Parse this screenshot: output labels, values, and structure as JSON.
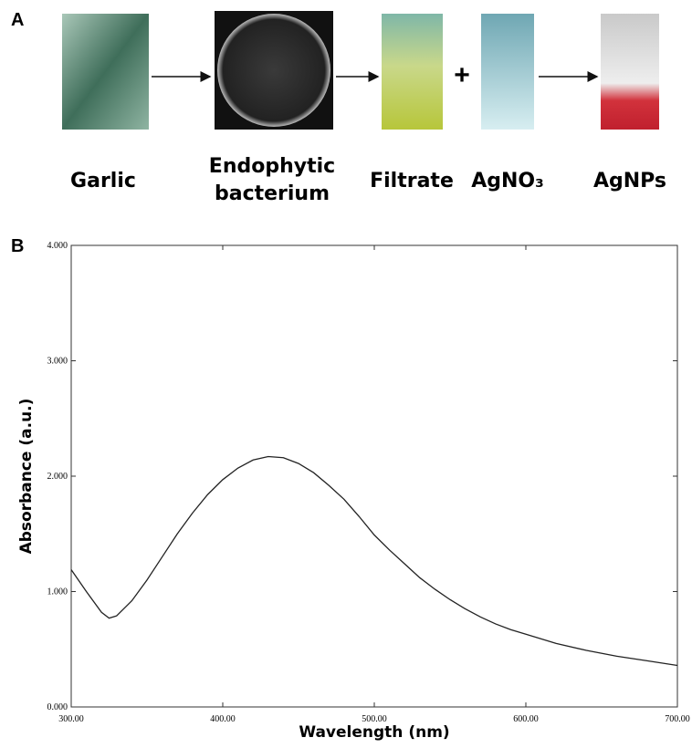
{
  "panel_a": {
    "label": "A",
    "steps": [
      "Garlic",
      "Endophytic bacterium",
      "Filtrate",
      "AgNO₃",
      "AgNPs"
    ],
    "plus": "+"
  },
  "chart_data": {
    "type": "line",
    "panel_label": "B",
    "x_label": "Wavelength (nm)",
    "y_label": "Absorbance (a.u.)",
    "x": [
      300,
      310,
      320,
      325,
      330,
      340,
      350,
      360,
      370,
      380,
      390,
      400,
      410,
      420,
      430,
      440,
      450,
      460,
      470,
      480,
      490,
      500,
      510,
      520,
      530,
      540,
      550,
      560,
      570,
      580,
      590,
      600,
      620,
      640,
      660,
      680,
      700
    ],
    "series": [
      {
        "color": "#222222",
        "values": [
          1.19,
          1.0,
          0.82,
          0.77,
          0.79,
          0.92,
          1.1,
          1.3,
          1.5,
          1.68,
          1.84,
          1.97,
          2.07,
          2.14,
          2.17,
          2.16,
          2.11,
          2.03,
          1.92,
          1.8,
          1.65,
          1.49,
          1.36,
          1.24,
          1.12,
          1.02,
          0.93,
          0.85,
          0.78,
          0.72,
          0.67,
          0.63,
          0.55,
          0.49,
          0.44,
          0.4,
          0.36
        ]
      }
    ],
    "xlim": [
      300,
      700
    ],
    "ylim": [
      0,
      4
    ],
    "xticks": [
      {
        "value": 300,
        "label": "300.00"
      },
      {
        "value": 400,
        "label": "400.00"
      },
      {
        "value": 500,
        "label": "500.00"
      },
      {
        "value": 600,
        "label": "600.00"
      },
      {
        "value": 700,
        "label": "700.00"
      }
    ],
    "yticks": [
      {
        "value": 0,
        "label": "0.000"
      },
      {
        "value": 1,
        "label": "1.000"
      },
      {
        "value": 2,
        "label": "2.000"
      },
      {
        "value": 3,
        "label": "3.000"
      },
      {
        "value": 4,
        "label": "4.000"
      }
    ],
    "grid": false
  }
}
